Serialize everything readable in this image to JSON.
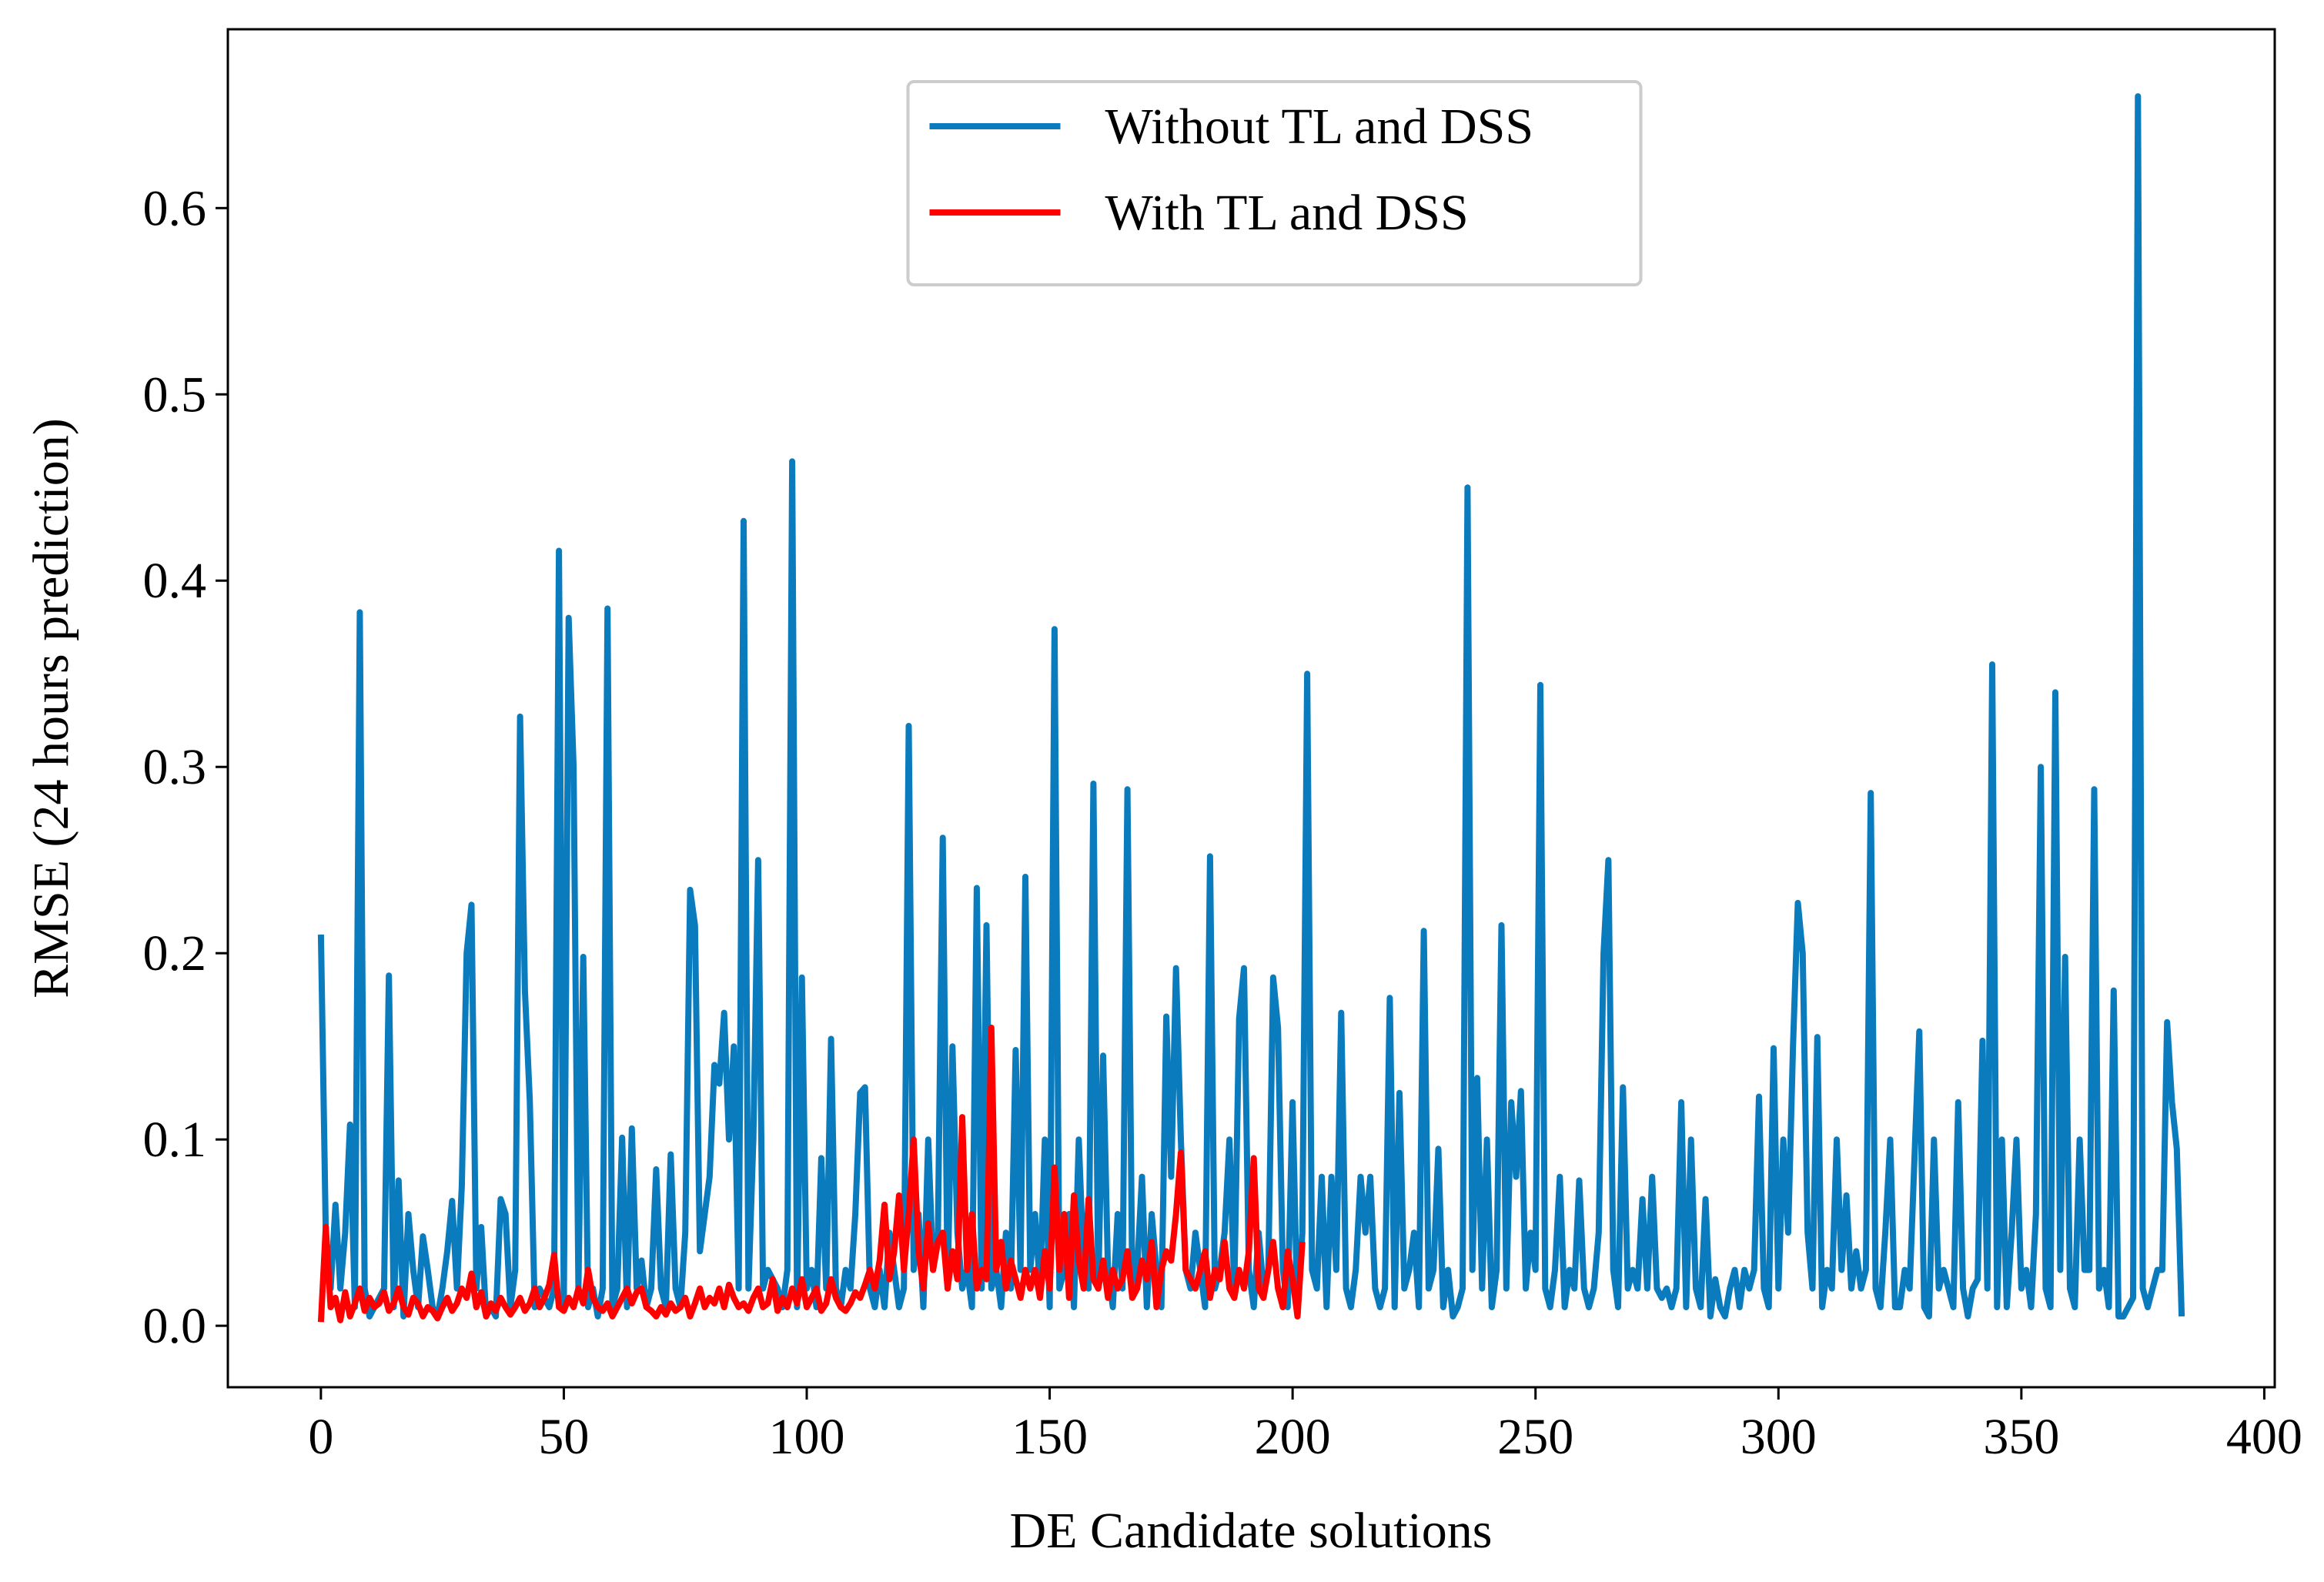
{
  "chart_data": {
    "type": "line",
    "xlabel": "DE Candidate solutions",
    "ylabel": "RMSE (24 hours prediction)",
    "legend": "upper center",
    "xlim": [
      -19.15,
      402.15
    ],
    "ylim": [
      -0.033,
      0.696
    ],
    "xticks": [
      0,
      50,
      100,
      150,
      200,
      250,
      300,
      350,
      400
    ],
    "yticks": [
      {
        "value": 0,
        "label": "0.0"
      },
      0.1,
      0.2,
      0.3,
      0.4,
      0.5,
      0.6
    ],
    "x": [
      0,
      1,
      2,
      3,
      4,
      5,
      6,
      7,
      8,
      9,
      10,
      11,
      12,
      13,
      14,
      15,
      16,
      17,
      18,
      19,
      20,
      21,
      22,
      23,
      24,
      25,
      26,
      27,
      28,
      29,
      30,
      31,
      32,
      33,
      34,
      35,
      36,
      37,
      38,
      39,
      40,
      41,
      42,
      43,
      44,
      45,
      46,
      47,
      48,
      49,
      50,
      51,
      52,
      53,
      54,
      55,
      56,
      57,
      58,
      59,
      60,
      61,
      62,
      63,
      64,
      65,
      66,
      67,
      68,
      69,
      70,
      71,
      72,
      73,
      74,
      75,
      76,
      77,
      78,
      79,
      80,
      81,
      82,
      83,
      84,
      85,
      86,
      87,
      88,
      89,
      90,
      91,
      92,
      93,
      94,
      95,
      96,
      97,
      98,
      99,
      100,
      101,
      102,
      103,
      104,
      105,
      106,
      107,
      108,
      109,
      110,
      111,
      112,
      113,
      114,
      115,
      116,
      117,
      118,
      119,
      120,
      121,
      122,
      123,
      124,
      125,
      126,
      127,
      128,
      129,
      130,
      131,
      132,
      133,
      134,
      135,
      136,
      137,
      138,
      139,
      140,
      141,
      142,
      143,
      144,
      145,
      146,
      147,
      148,
      149,
      150,
      151,
      152,
      153,
      154,
      155,
      156,
      157,
      158,
      159,
      160,
      161,
      162,
      163,
      164,
      165,
      166,
      167,
      168,
      169,
      170,
      171,
      172,
      173,
      174,
      175,
      176,
      177,
      178,
      179,
      180,
      181,
      182,
      183,
      184,
      185,
      186,
      187,
      188,
      189,
      190,
      191,
      192,
      193,
      194,
      195,
      196,
      197,
      198,
      199,
      200,
      201,
      202,
      203,
      204,
      205,
      206,
      207,
      208,
      209,
      210,
      211,
      212,
      213,
      214,
      215,
      216,
      217,
      218,
      219,
      220,
      221,
      222,
      223,
      224,
      225,
      226,
      227,
      228,
      229,
      230,
      231,
      232,
      233,
      234,
      235,
      236,
      237,
      238,
      239,
      240,
      241,
      242,
      243,
      244,
      245,
      246,
      247,
      248,
      249,
      250,
      251,
      252,
      253,
      254,
      255,
      256,
      257,
      258,
      259,
      260,
      261,
      262,
      263,
      264,
      265,
      266,
      267,
      268,
      269,
      270,
      271,
      272,
      273,
      274,
      275,
      276,
      277,
      278,
      279,
      280,
      281,
      282,
      283,
      284,
      285,
      286,
      287,
      288,
      289,
      290,
      291,
      292,
      293,
      294,
      295,
      296,
      297,
      298,
      299,
      300,
      301,
      302,
      303,
      304,
      305,
      306,
      307,
      308,
      309,
      310,
      311,
      312,
      313,
      314,
      315,
      316,
      317,
      318,
      319,
      320,
      321,
      322,
      323,
      324,
      325,
      326,
      327,
      328,
      329,
      330,
      331,
      332,
      333,
      334,
      335,
      336,
      337,
      338,
      339,
      340,
      341,
      342,
      343,
      344,
      345,
      346,
      347,
      348,
      349,
      350,
      351,
      352,
      353,
      354,
      355,
      356,
      357,
      358,
      359,
      360,
      361,
      362,
      363,
      364,
      365,
      366,
      367,
      368,
      369,
      370,
      371,
      372,
      373,
      374,
      375,
      376,
      377,
      378,
      379,
      380,
      381,
      382,
      383
    ],
    "series": [
      {
        "name": "Without TL and DSS",
        "color": "#0a7bbd",
        "values": [
          0.21,
          0.05,
          0.02,
          0.065,
          0.02,
          0.05,
          0.108,
          0.01,
          0.383,
          0.02,
          0.005,
          0.01,
          0.015,
          0.02,
          0.188,
          0.01,
          0.078,
          0.005,
          0.06,
          0.03,
          0.01,
          0.048,
          0.03,
          0.01,
          0.005,
          0.02,
          0.04,
          0.067,
          0.02,
          0.075,
          0.2,
          0.226,
          0.02,
          0.053,
          0.005,
          0.01,
          0.005,
          0.068,
          0.06,
          0.01,
          0.03,
          0.327,
          0.18,
          0.12,
          0.01,
          0.02,
          0.015,
          0.01,
          0.02,
          0.416,
          0.01,
          0.38,
          0.3,
          0.02,
          0.198,
          0.01,
          0.02,
          0.005,
          0.02,
          0.385,
          0.01,
          0.02,
          0.101,
          0.01,
          0.106,
          0.02,
          0.035,
          0.01,
          0.02,
          0.084,
          0.02,
          0.01,
          0.092,
          0.02,
          0.01,
          0.05,
          0.234,
          0.215,
          0.04,
          0.06,
          0.08,
          0.14,
          0.13,
          0.168,
          0.1,
          0.15,
          0.02,
          0.432,
          0.02,
          0.1,
          0.25,
          0.02,
          0.03,
          0.025,
          0.02,
          0.01,
          0.03,
          0.464,
          0.01,
          0.187,
          0.02,
          0.03,
          0.01,
          0.09,
          0.02,
          0.154,
          0.02,
          0.01,
          0.03,
          0.02,
          0.06,
          0.125,
          0.128,
          0.02,
          0.01,
          0.03,
          0.01,
          0.05,
          0.03,
          0.01,
          0.02,
          0.322,
          0.03,
          0.06,
          0.01,
          0.1,
          0.03,
          0.05,
          0.262,
          0.02,
          0.15,
          0.05,
          0.02,
          0.03,
          0.01,
          0.235,
          0.02,
          0.215,
          0.02,
          0.03,
          0.01,
          0.05,
          0.02,
          0.148,
          0.03,
          0.241,
          0.03,
          0.06,
          0.02,
          0.1,
          0.01,
          0.374,
          0.02,
          0.03,
          0.06,
          0.01,
          0.1,
          0.03,
          0.02,
          0.291,
          0.02,
          0.145,
          0.03,
          0.01,
          0.06,
          0.02,
          0.288,
          0.02,
          0.03,
          0.08,
          0.01,
          0.06,
          0.03,
          0.01,
          0.166,
          0.08,
          0.192,
          0.1,
          0.03,
          0.02,
          0.05,
          0.03,
          0.01,
          0.252,
          0.02,
          0.03,
          0.05,
          0.1,
          0.02,
          0.165,
          0.192,
          0.03,
          0.01,
          0.05,
          0.02,
          0.03,
          0.187,
          0.16,
          0.03,
          0.01,
          0.12,
          0.005,
          0.05,
          0.35,
          0.03,
          0.02,
          0.08,
          0.01,
          0.08,
          0.03,
          0.168,
          0.02,
          0.01,
          0.03,
          0.08,
          0.05,
          0.08,
          0.02,
          0.01,
          0.02,
          0.176,
          0.01,
          0.125,
          0.02,
          0.03,
          0.05,
          0.01,
          0.212,
          0.02,
          0.03,
          0.095,
          0.01,
          0.03,
          0.005,
          0.01,
          0.02,
          0.45,
          0.03,
          0.133,
          0.02,
          0.1,
          0.01,
          0.03,
          0.215,
          0.02,
          0.12,
          0.08,
          0.126,
          0.02,
          0.05,
          0.03,
          0.344,
          0.02,
          0.01,
          0.03,
          0.08,
          0.01,
          0.03,
          0.02,
          0.078,
          0.02,
          0.01,
          0.02,
          0.05,
          0.2,
          0.25,
          0.03,
          0.01,
          0.128,
          0.02,
          0.03,
          0.02,
          0.068,
          0.02,
          0.08,
          0.02,
          0.015,
          0.02,
          0.01,
          0.02,
          0.12,
          0.01,
          0.1,
          0.02,
          0.01,
          0.068,
          0.005,
          0.025,
          0.01,
          0.005,
          0.02,
          0.03,
          0.01,
          0.03,
          0.02,
          0.03,
          0.123,
          0.02,
          0.01,
          0.149,
          0.02,
          0.1,
          0.05,
          0.15,
          0.227,
          0.2,
          0.05,
          0.02,
          0.155,
          0.01,
          0.03,
          0.02,
          0.1,
          0.03,
          0.07,
          0.02,
          0.04,
          0.02,
          0.03,
          0.286,
          0.02,
          0.01,
          0.05,
          0.1,
          0.01,
          0.01,
          0.03,
          0.02,
          0.09,
          0.158,
          0.01,
          0.005,
          0.1,
          0.02,
          0.03,
          0.02,
          0.01,
          0.12,
          0.02,
          0.005,
          0.02,
          0.025,
          0.153,
          0.02,
          0.355,
          0.01,
          0.1,
          0.01,
          0.05,
          0.1,
          0.02,
          0.03,
          0.01,
          0.06,
          0.3,
          0.02,
          0.01,
          0.34,
          0.03,
          0.198,
          0.02,
          0.01,
          0.1,
          0.03,
          0.03,
          0.288,
          0.02,
          0.03,
          0.01,
          0.18,
          0.005,
          0.005,
          0.01,
          0.015,
          0.66,
          0.02,
          0.01,
          0.02,
          0.03,
          0.03,
          0.163,
          0.12,
          0.095,
          0.005
        ]
      },
      {
        "name": "With TL and DSS",
        "color": "#ff0000",
        "values": [
          0.002,
          0.053,
          0.01,
          0.015,
          0.003,
          0.018,
          0.005,
          0.012,
          0.02,
          0.008,
          0.015,
          0.01,
          0.012,
          0.018,
          0.008,
          0.012,
          0.02,
          0.01,
          0.006,
          0.015,
          0.012,
          0.005,
          0.01,
          0.008,
          0.004,
          0.01,
          0.015,
          0.008,
          0.012,
          0.02,
          0.015,
          0.028,
          0.01,
          0.018,
          0.005,
          0.012,
          0.008,
          0.015,
          0.01,
          0.006,
          0.01,
          0.015,
          0.008,
          0.012,
          0.02,
          0.01,
          0.015,
          0.022,
          0.038,
          0.01,
          0.008,
          0.015,
          0.01,
          0.02,
          0.012,
          0.03,
          0.015,
          0.01,
          0.008,
          0.012,
          0.005,
          0.01,
          0.015,
          0.02,
          0.012,
          0.018,
          0.02,
          0.01,
          0.008,
          0.005,
          0.01,
          0.006,
          0.012,
          0.008,
          0.01,
          0.015,
          0.005,
          0.012,
          0.02,
          0.01,
          0.015,
          0.012,
          0.02,
          0.01,
          0.022,
          0.015,
          0.01,
          0.012,
          0.008,
          0.015,
          0.02,
          0.01,
          0.012,
          0.025,
          0.008,
          0.015,
          0.01,
          0.02,
          0.012,
          0.025,
          0.01,
          0.015,
          0.02,
          0.008,
          0.012,
          0.025,
          0.015,
          0.01,
          0.008,
          0.012,
          0.018,
          0.015,
          0.022,
          0.03,
          0.02,
          0.035,
          0.065,
          0.025,
          0.04,
          0.07,
          0.03,
          0.06,
          0.1,
          0.04,
          0.02,
          0.055,
          0.03,
          0.045,
          0.05,
          0.02,
          0.04,
          0.025,
          0.112,
          0.03,
          0.06,
          0.02,
          0.03,
          0.025,
          0.16,
          0.03,
          0.045,
          0.02,
          0.035,
          0.025,
          0.015,
          0.03,
          0.02,
          0.03,
          0.015,
          0.04,
          0.02,
          0.085,
          0.03,
          0.06,
          0.015,
          0.07,
          0.035,
          0.02,
          0.068,
          0.025,
          0.02,
          0.035,
          0.015,
          0.03,
          0.02,
          0.025,
          0.04,
          0.015,
          0.02,
          0.035,
          0.025,
          0.045,
          0.01,
          0.03,
          0.04,
          0.035,
          0.06,
          0.093,
          0.03,
          0.025,
          0.02,
          0.03,
          0.04,
          0.015,
          0.03,
          0.025,
          0.045,
          0.02,
          0.015,
          0.03,
          0.02,
          0.04,
          0.09,
          0.02,
          0.015,
          0.03,
          0.045,
          0.02,
          0.01,
          0.04,
          0.025,
          0.005,
          0.045,
          null,
          null,
          null,
          null,
          null,
          null,
          null,
          null,
          null,
          null,
          null,
          null,
          null,
          null,
          null,
          null,
          null,
          null,
          null,
          null,
          null,
          null,
          null,
          null,
          null,
          null,
          null,
          null,
          null,
          null,
          null,
          null,
          null,
          null,
          null,
          null,
          null,
          null,
          null,
          null,
          null,
          null,
          null,
          null,
          null,
          null,
          null,
          null,
          null,
          null,
          null,
          null,
          null,
          null,
          null,
          null,
          null,
          null,
          null,
          null,
          null,
          null,
          null,
          null,
          null,
          null,
          null,
          null,
          null,
          null,
          null,
          null,
          null,
          null,
          null,
          null,
          null,
          null,
          null,
          null,
          null,
          null,
          null,
          null,
          null,
          null,
          null,
          null,
          null,
          null,
          null,
          null,
          null,
          null,
          null,
          null,
          null,
          null,
          null,
          null,
          null,
          null,
          null,
          null,
          null,
          null,
          null,
          null,
          null,
          null,
          null,
          null,
          null,
          null,
          null,
          null,
          null,
          null,
          null,
          null,
          null,
          null,
          null,
          null,
          null,
          null,
          null,
          null,
          null,
          null,
          null,
          null,
          null,
          null,
          null,
          null,
          null,
          null,
          null,
          null,
          null,
          null,
          null,
          null,
          null,
          null,
          null,
          null,
          null,
          null,
          null,
          null,
          null,
          null,
          null,
          null,
          null,
          null,
          null,
          null,
          null,
          null,
          null,
          null,
          null,
          null,
          null,
          null,
          null,
          null,
          null,
          null,
          null,
          null,
          null,
          null,
          null,
          null,
          null,
          null,
          null
        ]
      }
    ]
  }
}
